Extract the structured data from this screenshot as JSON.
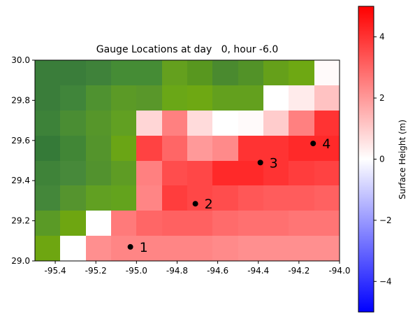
{
  "chart_data": {
    "type": "heatmap",
    "title": "Gauge Locations at day   0, hour -6.0",
    "xlabel": "",
    "ylabel": "",
    "xlim": [
      -95.5,
      -94.0
    ],
    "ylim": [
      29.0,
      30.0
    ],
    "x_ticks": [
      "-95.4",
      "-95.2",
      "-95.0",
      "-94.8",
      "-94.6",
      "-94.4",
      "-94.2",
      "-94.0"
    ],
    "y_ticks": [
      "29.0",
      "29.2",
      "29.4",
      "29.6",
      "29.8",
      "30.0"
    ],
    "grid": false,
    "grid_rows": 8,
    "grid_cols": 12,
    "cell_size_deg": 0.125,
    "land_value": null,
    "surface_height_rows_top_to_bottom": [
      [
        null,
        null,
        null,
        null,
        null,
        null,
        null,
        null,
        null,
        null,
        null,
        0.1
      ],
      [
        null,
        null,
        null,
        null,
        null,
        null,
        null,
        null,
        null,
        0.0,
        0.4,
        1.2
      ],
      [
        null,
        null,
        null,
        null,
        0.8,
        2.5,
        0.7,
        0.0,
        0.1,
        1.0,
        2.5,
        4.0
      ],
      [
        null,
        null,
        null,
        null,
        3.7,
        3.0,
        2.0,
        2.3,
        4.0,
        4.0,
        4.2,
        4.2
      ],
      [
        null,
        null,
        null,
        null,
        2.5,
        3.5,
        3.6,
        4.2,
        4.2,
        4.0,
        3.8,
        3.7
      ],
      [
        null,
        null,
        null,
        null,
        2.4,
        3.8,
        3.6,
        3.5,
        3.3,
        3.2,
        3.2,
        3.1
      ],
      [
        null,
        null,
        0.0,
        2.6,
        3.0,
        3.1,
        3.1,
        2.9,
        2.8,
        2.8,
        2.7,
        2.7
      ],
      [
        null,
        0.0,
        2.2,
        2.4,
        2.4,
        2.4,
        2.4,
        2.3,
        2.2,
        2.2,
        2.2,
        2.2
      ]
    ],
    "land_colors_rows_top_to_bottom": [
      [
        "#3a7d3a",
        "#3a7d3a",
        "#3f823a",
        "#458c35",
        "#458c35",
        "#64a01e",
        "#58971f",
        "#4a8a2f",
        "#529228",
        "#65a01a",
        "#6ea813",
        null
      ],
      [
        "#3a7d3a",
        "#40853a",
        "#4f9230",
        "#5b9a26",
        "#59972a",
        "#6aa717",
        "#6ea813",
        "#63a01e",
        "#63a01e",
        null,
        null,
        null
      ],
      [
        "#3d8239",
        "#4a8d33",
        "#56962a",
        "#61a022",
        null,
        null,
        null,
        null,
        null,
        null,
        null,
        null
      ],
      [
        "#357a38",
        "#418636",
        "#54942c",
        "#6aa515",
        null,
        null,
        null,
        null,
        null,
        null,
        null,
        null
      ],
      [
        "#3f8339",
        "#47893a",
        "#52922e",
        "#5e9c24",
        null,
        null,
        null,
        null,
        null,
        null,
        null,
        null
      ],
      [
        "#44873a",
        "#55942e",
        "#61a022",
        "#63a31d",
        null,
        null,
        null,
        null,
        null,
        null,
        null,
        null
      ],
      [
        "#5a9a26",
        "#6ea611",
        null,
        null,
        null,
        null,
        null,
        null,
        null,
        null,
        null,
        null
      ],
      [
        "#6ea611",
        null,
        null,
        null,
        null,
        null,
        null,
        null,
        null,
        null,
        null,
        null
      ]
    ],
    "gauges": [
      {
        "label": "1",
        "lon": -95.03,
        "lat": 29.07
      },
      {
        "label": "2",
        "lon": -94.71,
        "lat": 29.285
      },
      {
        "label": "3",
        "lon": -94.39,
        "lat": 29.49
      },
      {
        "label": "4",
        "lon": -94.13,
        "lat": 29.585
      }
    ],
    "colorbar": {
      "label": "Surface Height (m)",
      "vmin": -5,
      "vmax": 5,
      "ticks": [
        "−4",
        "−2",
        "0",
        "2",
        "4"
      ],
      "tick_values": [
        -4,
        -2,
        0,
        2,
        4
      ],
      "colormap": "bwr"
    }
  }
}
